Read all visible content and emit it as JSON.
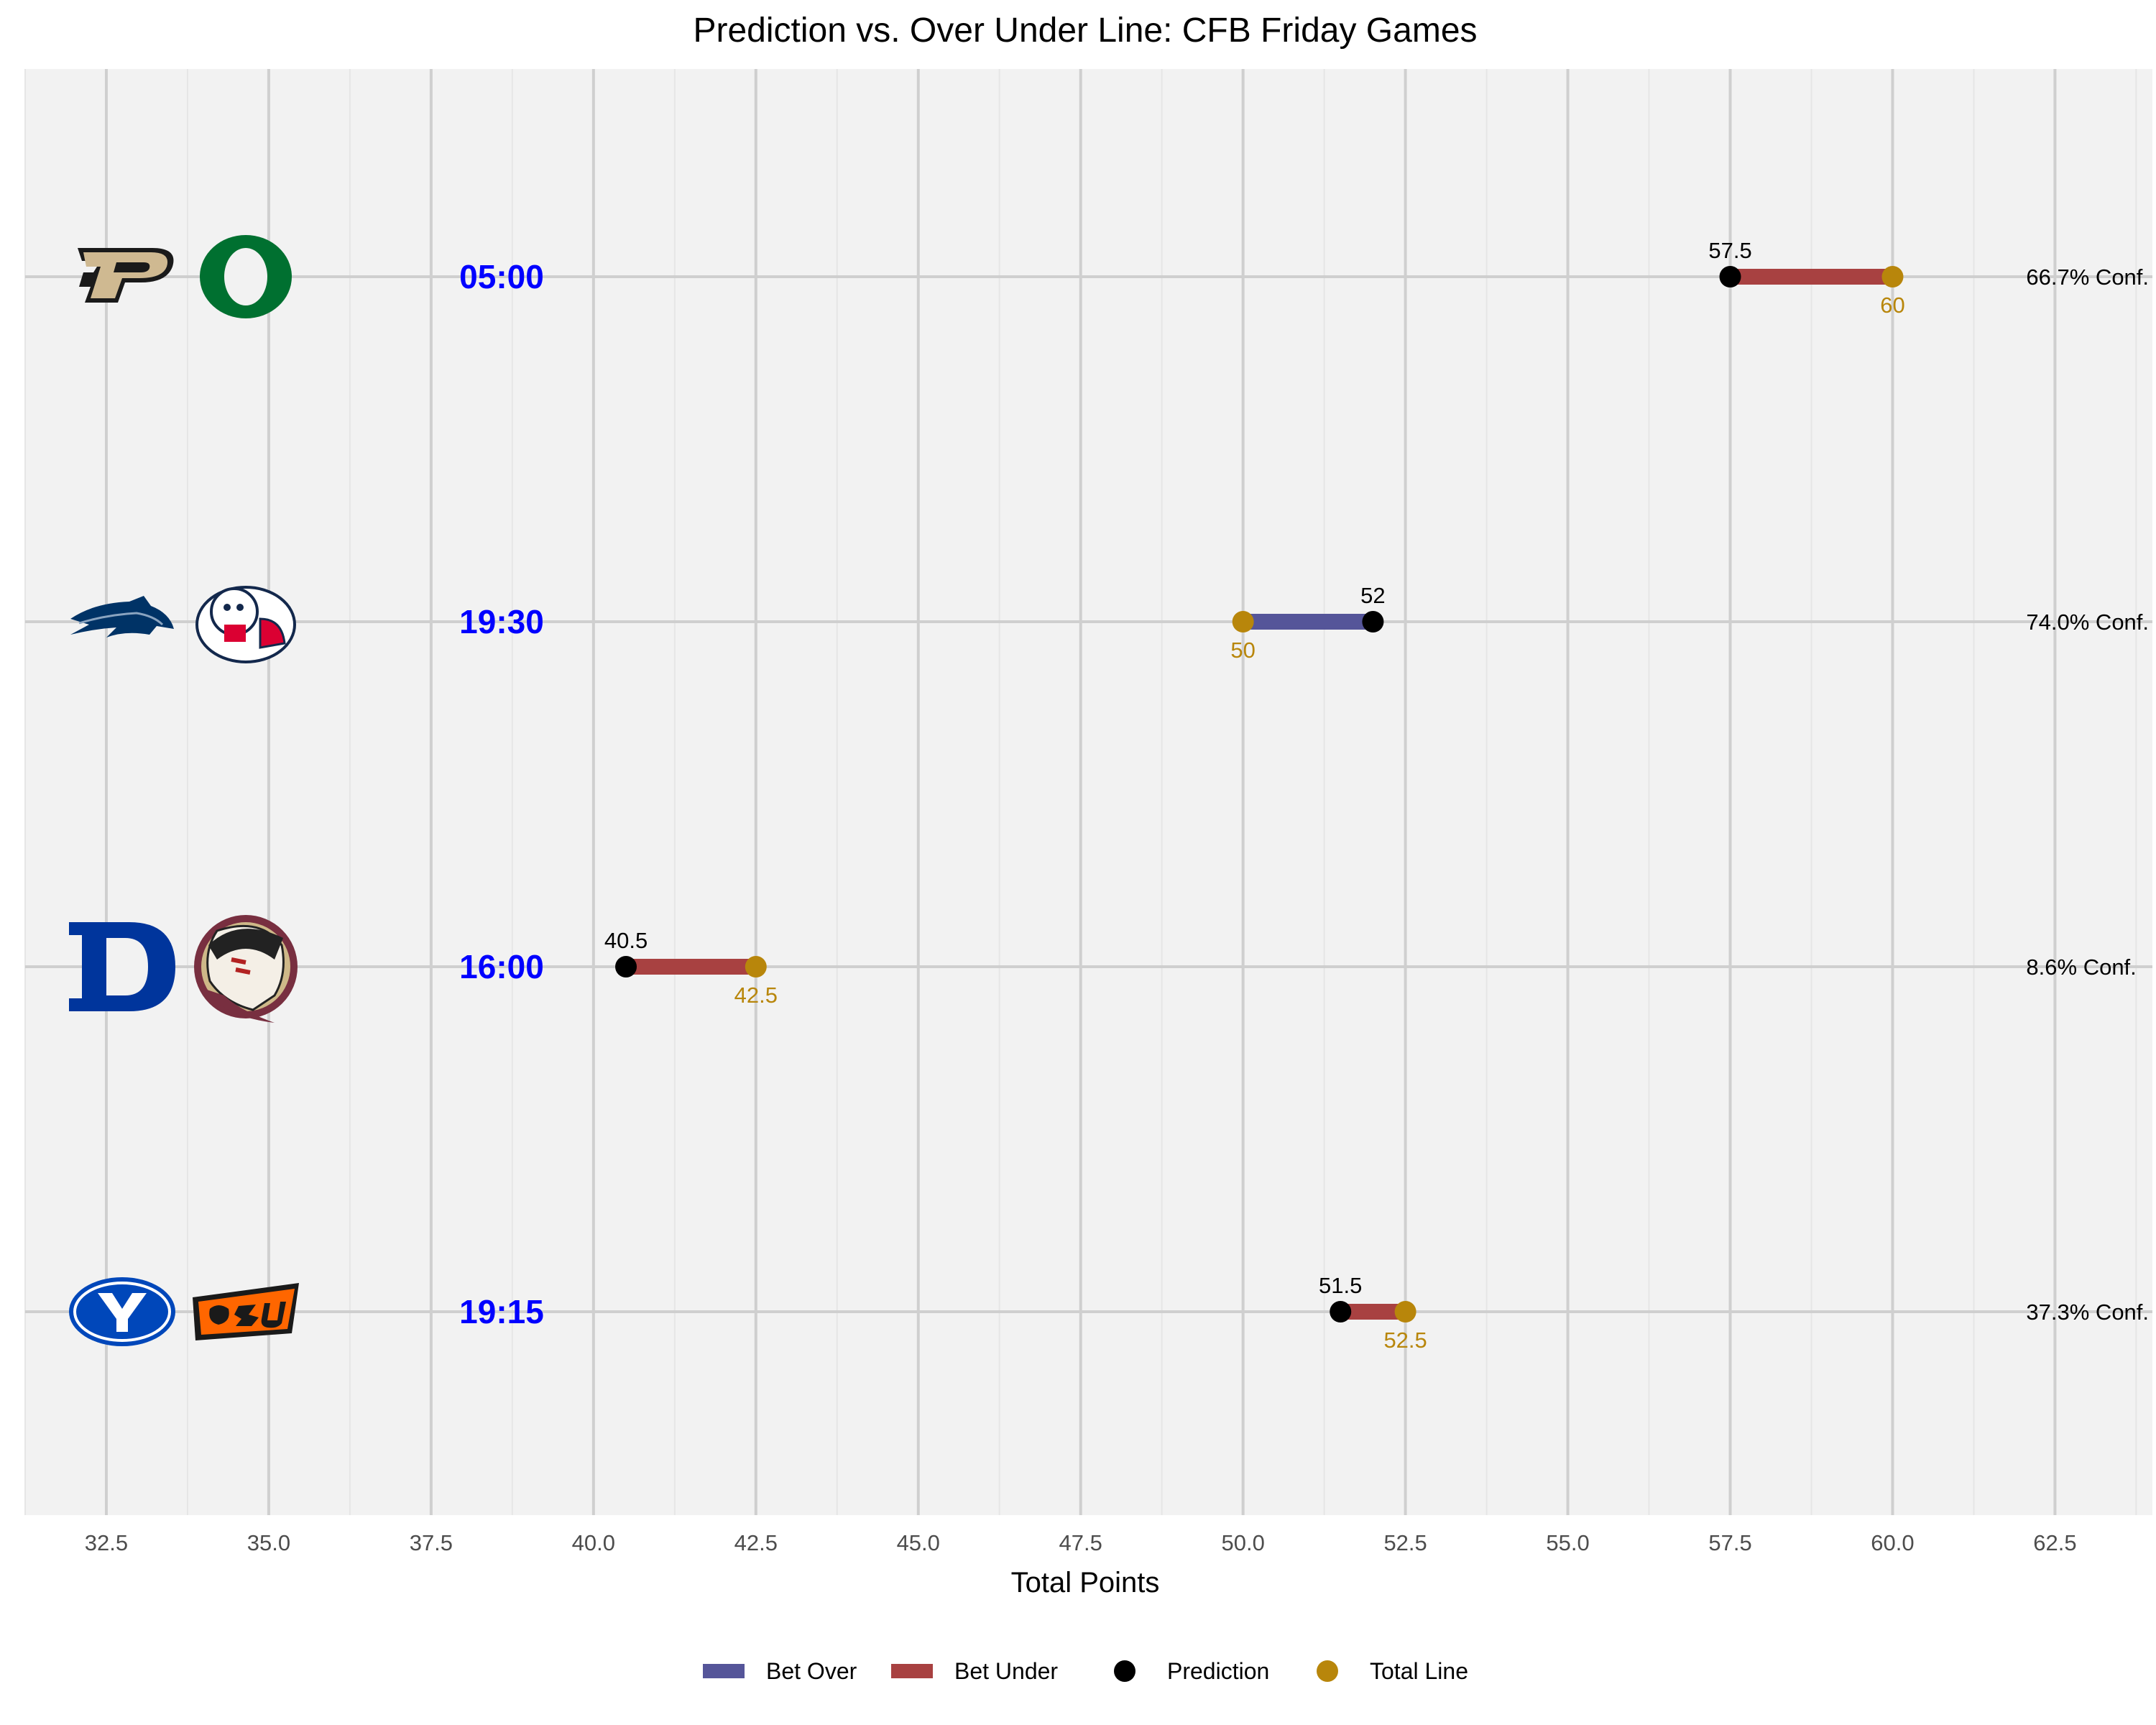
{
  "chart_data": {
    "type": "dumbbell",
    "title": "Prediction vs. Over Under Line: CFB Friday Games",
    "xlabel": "Total Points",
    "ylabel": "",
    "xlim": [
      31.25,
      64.0
    ],
    "x_ticks": [
      "32.5",
      "35.0",
      "37.5",
      "40.0",
      "42.5",
      "45.0",
      "47.5",
      "50.0",
      "52.5",
      "55.0",
      "57.5",
      "60.0",
      "62.5"
    ],
    "grid": true,
    "legend_position": "bottom",
    "colors": {
      "bet_over": "#555599",
      "bet_under": "#a84141",
      "prediction": "#000000",
      "total_line": "#b8860b",
      "time": "#0000ff",
      "panel": "#f2f2f2"
    },
    "legend": [
      {
        "key": "bet_over",
        "label": "Bet Over",
        "kind": "bar"
      },
      {
        "key": "bet_under",
        "label": "Bet Under",
        "kind": "bar"
      },
      {
        "key": "prediction",
        "label": "Prediction",
        "kind": "dot"
      },
      {
        "key": "total_line",
        "label": "Total Line",
        "kind": "dot"
      }
    ],
    "games": [
      {
        "away_logo": "purdue-logo",
        "home_logo": "oregon-logo",
        "time": "05:00",
        "prediction": 57.5,
        "prediction_label": "57.5",
        "total_line": 60,
        "line_label": "60",
        "bet": "bet_under",
        "confidence": "66.7% Conf."
      },
      {
        "away_logo": "nevada-logo",
        "home_logo": "fresno-state-logo",
        "time": "19:30",
        "prediction": 52,
        "prediction_label": "52",
        "total_line": 50,
        "line_label": "50",
        "bet": "bet_over",
        "confidence": "74.0% Conf."
      },
      {
        "away_logo": "duke-logo",
        "home_logo": "florida-state-logo",
        "time": "16:00",
        "prediction": 40.5,
        "prediction_label": "40.5",
        "total_line": 42.5,
        "line_label": "42.5",
        "bet": "bet_under",
        "confidence": "8.6% Conf."
      },
      {
        "away_logo": "byu-logo",
        "home_logo": "oklahoma-state-logo",
        "time": "19:15",
        "prediction": 51.5,
        "prediction_label": "51.5",
        "total_line": 52.5,
        "line_label": "52.5",
        "bet": "bet_under",
        "confidence": "37.3% Conf."
      }
    ],
    "confidence_x": 62.5
  }
}
